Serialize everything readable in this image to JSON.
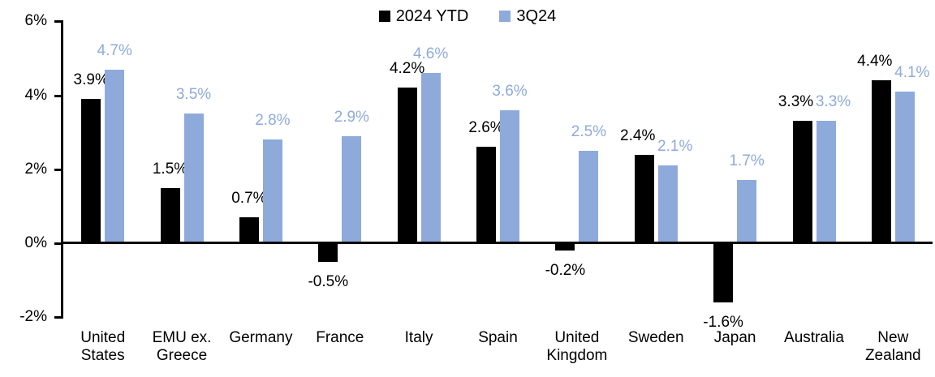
{
  "chart_data": {
    "type": "bar",
    "title": "",
    "categories": [
      "United States",
      "EMU ex. Greece",
      "Germany",
      "France",
      "Italy",
      "Spain",
      "United Kingdom",
      "Sweden",
      "Japan",
      "Australia",
      "New Zealand"
    ],
    "category_labels": [
      "United\nStates",
      "EMU ex.\nGreece",
      "Germany",
      "France",
      "Italy",
      "Spain",
      "United\nKingdom",
      "Sweden",
      "Japan",
      "Australia",
      "New\nZealand"
    ],
    "series": [
      {
        "name": "2024 YTD",
        "color": "#000000",
        "values": [
          3.9,
          1.5,
          0.7,
          -0.5,
          4.2,
          2.6,
          -0.2,
          2.4,
          -1.6,
          3.3,
          4.4
        ],
        "labels": [
          "3.9%",
          "1.5%",
          "0.7%",
          "-0.5%",
          "4.2%",
          "2.6%",
          "-0.2%",
          "2.4%",
          "-1.6%",
          "3.3%",
          "4.4%"
        ]
      },
      {
        "name": "3Q24",
        "color": "#8EAADB",
        "values": [
          4.7,
          3.5,
          2.8,
          2.9,
          4.6,
          3.6,
          2.5,
          2.1,
          1.7,
          3.3,
          4.1
        ],
        "labels": [
          "4.7%",
          "3.5%",
          "2.8%",
          "2.9%",
          "4.6%",
          "3.6%",
          "2.5%",
          "2.1%",
          "1.7%",
          "3.3%",
          "4.1%"
        ]
      }
    ],
    "y_axis": {
      "min": -2,
      "max": 6,
      "tick_step": 2,
      "tick_labels": [
        "6%",
        "4%",
        "2%",
        "0%",
        "-2%"
      ]
    },
    "legend": {
      "position": "top-center",
      "entries": [
        {
          "label": "2024 YTD",
          "color": "#000000"
        },
        {
          "label": "3Q24",
          "color": "#8EAADB"
        }
      ]
    },
    "grid": false,
    "background": "#FFFFFF"
  }
}
